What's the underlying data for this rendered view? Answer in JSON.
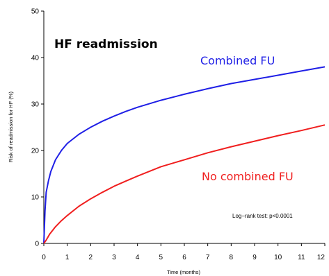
{
  "chart_data": {
    "type": "line",
    "title": "HF readmission",
    "xlabel": "Time (months)",
    "ylabel": "Risk of readmission for HF (%)",
    "xlim": [
      0,
      12
    ],
    "ylim": [
      0,
      50
    ],
    "xticks": [
      "0",
      "1",
      "2",
      "3",
      "4",
      "5",
      "6",
      "7",
      "8",
      "9",
      "10",
      "11",
      "12"
    ],
    "yticks": [
      "0",
      "10",
      "20",
      "30",
      "40",
      "50"
    ],
    "annotation": "Log−rank test: p<0.0001",
    "grid": false,
    "series": [
      {
        "name": "Combined FU",
        "color": "#1f1fe6",
        "x": [
          0,
          0.05,
          0.1,
          0.2,
          0.3,
          0.5,
          0.75,
          1,
          1.5,
          2,
          2.5,
          3,
          3.5,
          4,
          5,
          6,
          7,
          8,
          9,
          10,
          11,
          12
        ],
        "y": [
          0,
          7,
          11,
          13.5,
          15.5,
          18,
          20,
          21.5,
          23.5,
          25,
          26.3,
          27.4,
          28.4,
          29.3,
          30.8,
          32.1,
          33.3,
          34.4,
          35.3,
          36.2,
          37.1,
          38
        ]
      },
      {
        "name": "No combined FU",
        "color": "#f01f1f",
        "x": [
          0,
          0.1,
          0.25,
          0.5,
          0.75,
          1,
          1.5,
          2,
          2.5,
          3,
          3.5,
          4,
          5,
          6,
          7,
          8,
          9,
          10,
          11,
          12
        ],
        "y": [
          0,
          0.7,
          2,
          3.6,
          4.9,
          6,
          8,
          9.6,
          11,
          12.3,
          13.4,
          14.5,
          16.5,
          18,
          19.5,
          20.8,
          22,
          23.2,
          24.3,
          25.5
        ]
      }
    ]
  }
}
